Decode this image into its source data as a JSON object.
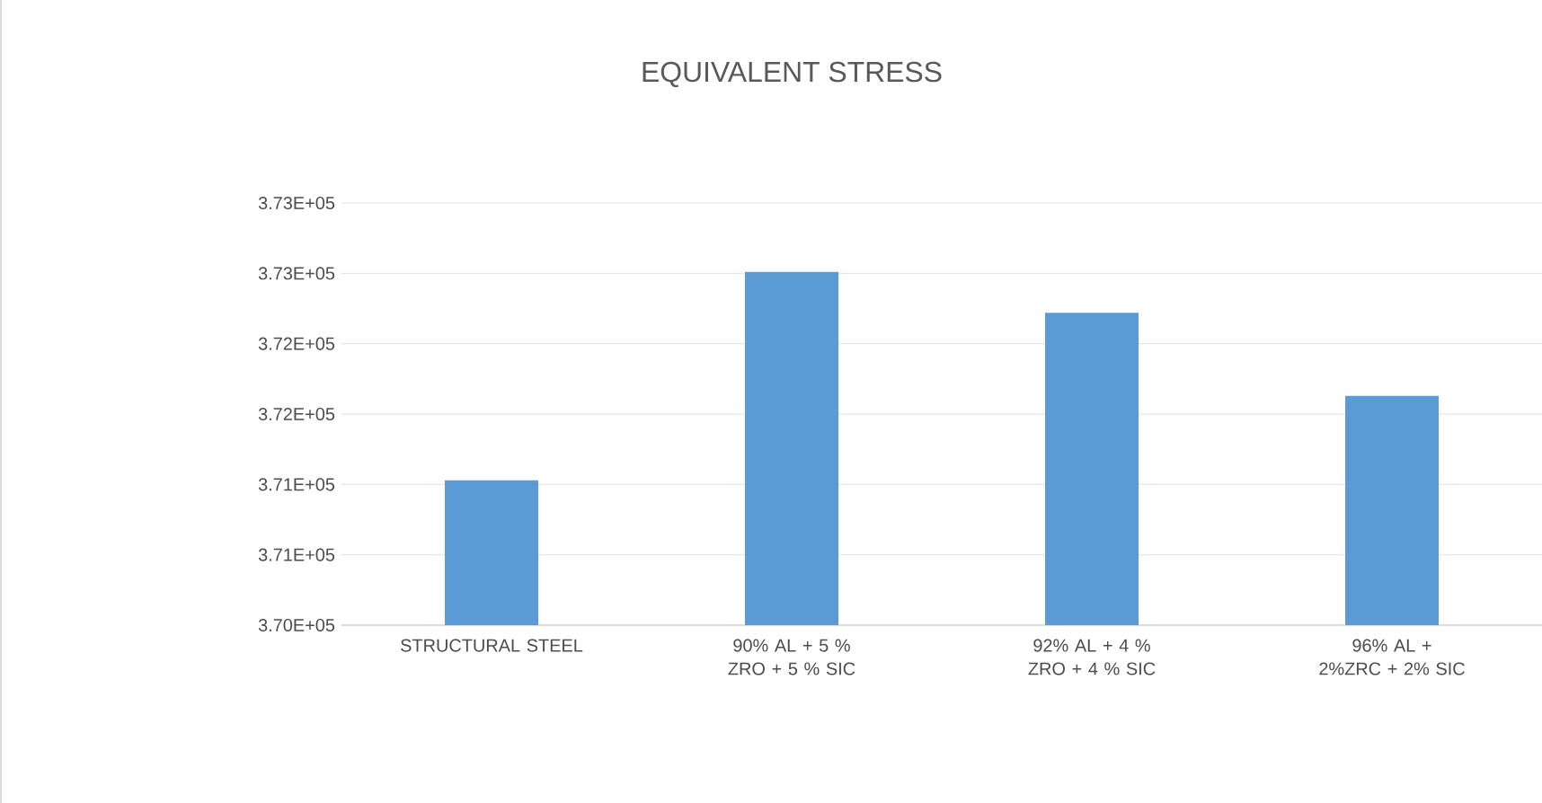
{
  "chart_data": {
    "type": "bar",
    "title": "EQUIVALENT STRESS",
    "categories": [
      "STRUCTURAL STEEL",
      "90% AL + 5 % ZRO + 5 % SIC",
      "92% AL + 4 % ZRO + 4 % SIC",
      "96% AL + 2%ZRC + 2% SIC"
    ],
    "values": [
      371030,
      372510,
      372220,
      371630
    ],
    "color": "#5b9bd5",
    "ylim": [
      370000,
      373000
    ],
    "yticks": [
      {
        "value": 370000,
        "label": "3.70E+05"
      },
      {
        "value": 370500,
        "label": "3.71E+05"
      },
      {
        "value": 371000,
        "label": "3.71E+05"
      },
      {
        "value": 371500,
        "label": "3.72E+05"
      },
      {
        "value": 372000,
        "label": "3.72E+05"
      },
      {
        "value": 372500,
        "label": "3.73E+05"
      },
      {
        "value": 373000,
        "label": "3.73E+05"
      }
    ],
    "grid": "y"
  }
}
